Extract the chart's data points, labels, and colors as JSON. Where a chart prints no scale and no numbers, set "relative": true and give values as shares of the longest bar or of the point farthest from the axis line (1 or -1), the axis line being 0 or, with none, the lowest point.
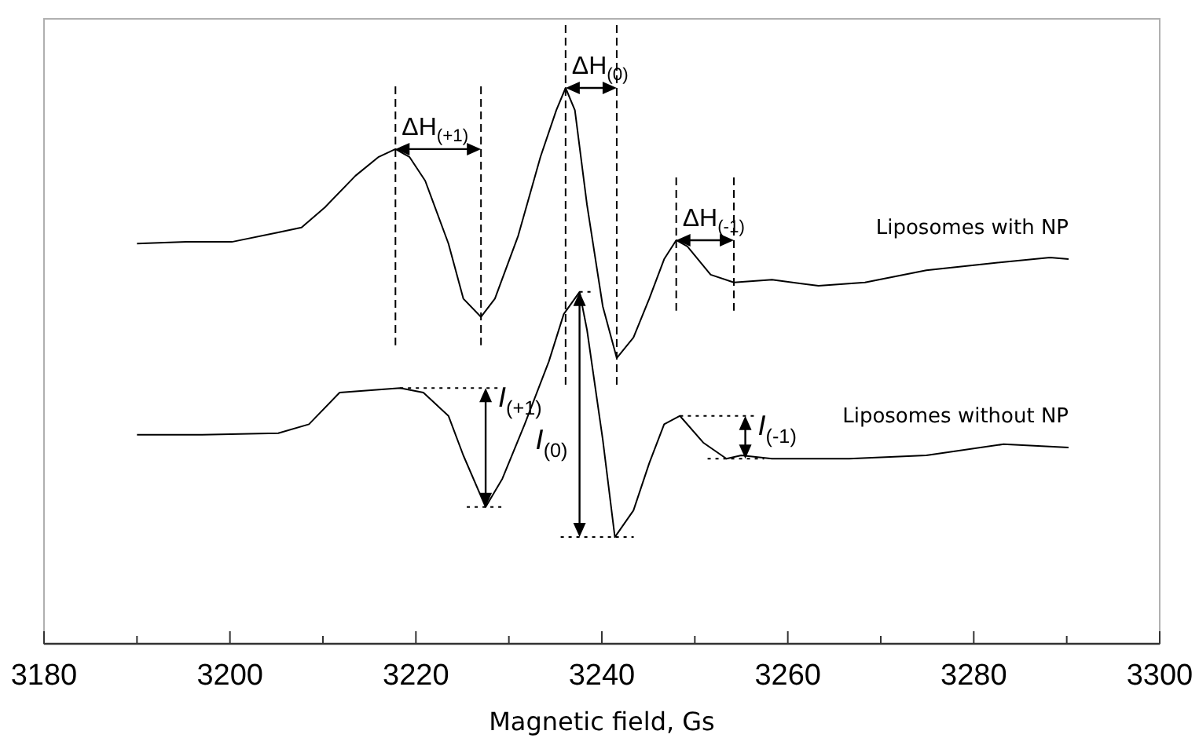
{
  "chart_data": {
    "type": "line",
    "relative": true,
    "xlabel": "Magnetic field, Gs",
    "xlim": [
      3180,
      3300
    ],
    "xticks": [
      3180,
      {
        "value": 3190,
        "label": null
      },
      3200,
      {
        "value": 3210,
        "label": null
      },
      3220,
      {
        "value": 3230,
        "label": null
      },
      3240,
      {
        "value": 3250,
        "label": null
      },
      3260,
      {
        "value": 3270,
        "label": null
      },
      3280,
      {
        "value": 3290,
        "label": null
      },
      3300
    ],
    "grid": false,
    "marker": "none",
    "line_style": "solid",
    "series": [
      {
        "name": "Liposomes with NP",
        "color": "#000000",
        "x": [
          3190,
          3195.3,
          3200.2,
          3205.2,
          3207.7,
          3210.2,
          3213.5,
          3216,
          3217.8,
          3219.3,
          3221,
          3223.5,
          3225.1,
          3227,
          3228.5,
          3231,
          3233.4,
          3235.1,
          3236.1,
          3237.1,
          3238.4,
          3240.1,
          3241.6,
          3243.4,
          3245.1,
          3246.7,
          3248,
          3249.2,
          3251.7,
          3254.2,
          3258.3,
          3263.3,
          3268.3,
          3274.9,
          3281.6,
          3288.2,
          3290.2
        ],
        "values": [
          0.72,
          0.723,
          0.723,
          0.74,
          0.749,
          0.785,
          0.842,
          0.876,
          0.89,
          0.876,
          0.833,
          0.72,
          0.621,
          0.588,
          0.621,
          0.734,
          0.876,
          0.96,
          1,
          0.96,
          0.79,
          0.607,
          0.514,
          0.551,
          0.621,
          0.692,
          0.726,
          0.715,
          0.664,
          0.65,
          0.655,
          0.644,
          0.65,
          0.672,
          0.684,
          0.695,
          0.692
        ]
      },
      {
        "name": "Liposomes without NP",
        "color": "#000000",
        "x": [
          3190,
          3197,
          3205.2,
          3208.5,
          3211.8,
          3218.3,
          3220.8,
          3223.5,
          3225.1,
          3227.5,
          3229.3,
          3231.7,
          3234.3,
          3235.9,
          3237.6,
          3238.4,
          3240.1,
          3241.4,
          3243.4,
          3245.1,
          3246.7,
          3248.4,
          3250.9,
          3253.4,
          3255,
          3258.3,
          3266.6,
          3274.9,
          3283.2,
          3290.2
        ],
        "values": [
          0.376,
          0.376,
          0.379,
          0.395,
          0.452,
          0.46,
          0.452,
          0.41,
          0.339,
          0.246,
          0.297,
          0.395,
          0.508,
          0.593,
          0.633,
          0.565,
          0.367,
          0.192,
          0.24,
          0.325,
          0.395,
          0.41,
          0.362,
          0.333,
          0.339,
          0.333,
          0.333,
          0.339,
          0.359,
          0.353
        ]
      }
    ],
    "annotations": [
      {
        "text": "ΔH$_{(+1)}$",
        "x": 3217.8,
        "y": 0.89
      },
      {
        "text": "ΔH$_{(0)}$",
        "x": 3236.1,
        "y": 1
      },
      {
        "text": "ΔH$_{(-1)}$",
        "x": 3248,
        "y": 0.726
      },
      "I$_{(+1)}$",
      "I$_{(0)}$",
      "I$_{(-1)}$"
    ]
  }
}
